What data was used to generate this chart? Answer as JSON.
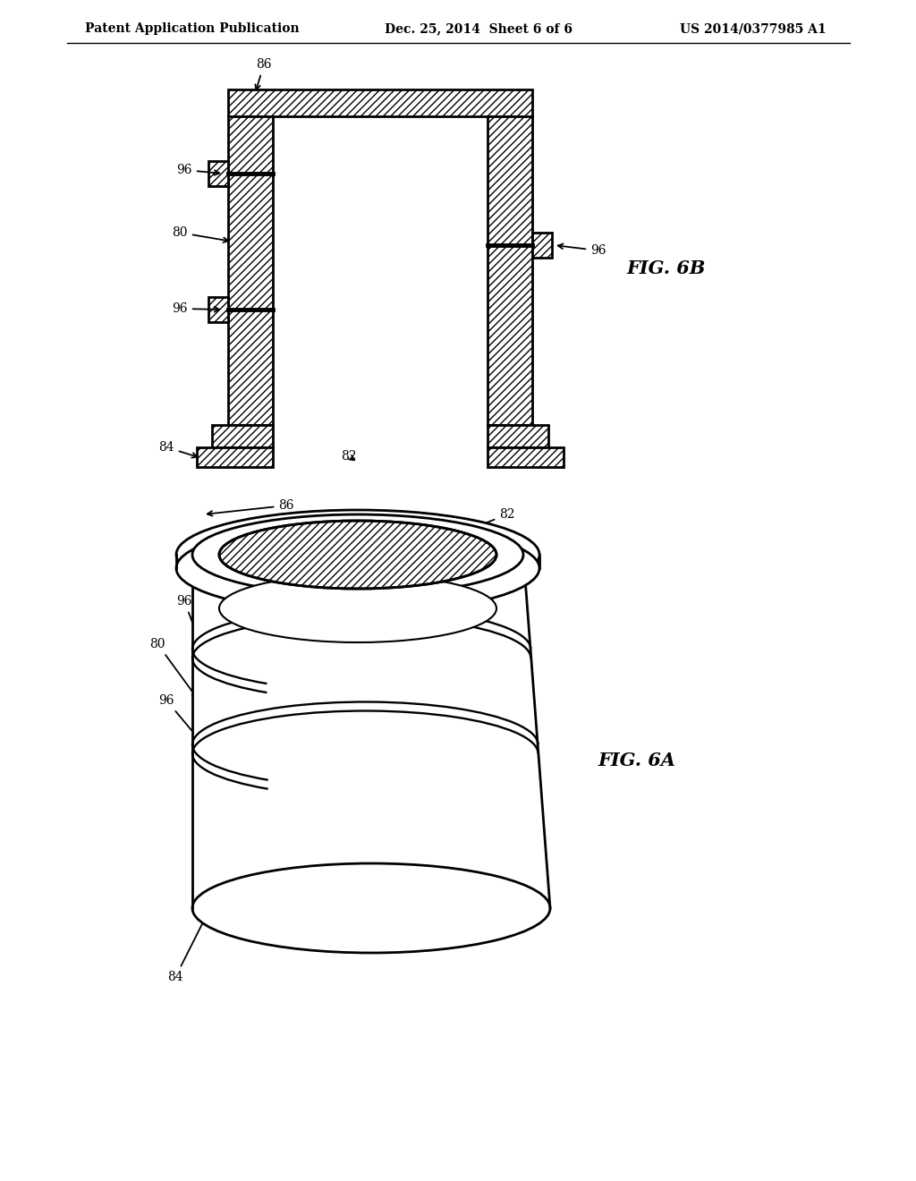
{
  "background_color": "#ffffff",
  "header_left": "Patent Application Publication",
  "header_center": "Dec. 25, 2014  Sheet 6 of 6",
  "header_right": "US 2014/0377985 A1",
  "fig6b_label": "FIG. 6B",
  "fig6a_label": "FIG. 6A",
  "line_color": "#000000",
  "hatch_pattern": "////"
}
